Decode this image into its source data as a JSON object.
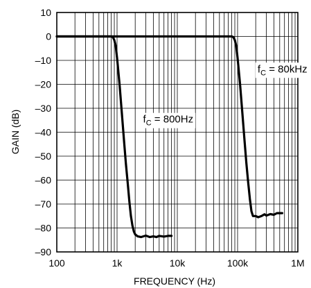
{
  "chart_data": {
    "type": "line",
    "xlabel": "FREQUENCY (Hz)",
    "ylabel": "GAIN (dB)",
    "x_scale": "log",
    "xlim": [
      100,
      1000000
    ],
    "ylim": [
      -90,
      10
    ],
    "grid": true,
    "x_ticks": [
      {
        "value": 100,
        "label": "100"
      },
      {
        "value": 1000,
        "label": "1k"
      },
      {
        "value": 10000,
        "label": "10k"
      },
      {
        "value": 100000,
        "label": "100k"
      },
      {
        "value": 1000000,
        "label": "1M"
      }
    ],
    "y_ticks": [
      {
        "value": 10,
        "label": "10"
      },
      {
        "value": 0,
        "label": "0"
      },
      {
        "value": -10,
        "label": "–10"
      },
      {
        "value": -20,
        "label": "–20"
      },
      {
        "value": -30,
        "label": "–30"
      },
      {
        "value": -40,
        "label": "–40"
      },
      {
        "value": -50,
        "label": "–50"
      },
      {
        "value": -60,
        "label": "–60"
      },
      {
        "value": -70,
        "label": "–70"
      },
      {
        "value": -80,
        "label": "–80"
      },
      {
        "value": -90,
        "label": "–90"
      }
    ],
    "series": [
      {
        "x": [
          100,
          500,
          800,
          850,
          900,
          950,
          1000,
          1100,
          1200,
          1300,
          1400,
          1500,
          1600,
          1700,
          1800,
          1900,
          2000,
          2200,
          2500,
          3000,
          3500,
          4000,
          4500,
          5000,
          6000,
          7000,
          8000
        ],
        "y": [
          0,
          0,
          0,
          -0.3,
          -1.5,
          -4,
          -9,
          -20,
          -32,
          -43,
          -53,
          -61,
          -69,
          -75,
          -79,
          -81.5,
          -82.7,
          -83.5,
          -83.8,
          -83.2,
          -83.8,
          -83.5,
          -83.8,
          -83.3,
          -83.6,
          -83.3,
          -83.3
        ]
      },
      {
        "x": [
          100,
          50000,
          80000,
          85000,
          90000,
          95000,
          100000,
          110000,
          120000,
          130000,
          140000,
          150000,
          160000,
          170000,
          180000,
          200000,
          220000,
          250000,
          280000,
          300000,
          350000,
          400000,
          450000,
          500000,
          550000
        ],
        "y": [
          0,
          0,
          0,
          -0.3,
          -1.5,
          -4,
          -9,
          -20,
          -32,
          -43,
          -53,
          -61,
          -68,
          -73,
          -75,
          -75,
          -75.5,
          -75,
          -74.3,
          -74.8,
          -74.2,
          -74.5,
          -73.8,
          -73.8,
          -73.8
        ]
      }
    ],
    "annotations": [
      {
        "sub": "C",
        "rest": " = 800Hz",
        "x": 2700,
        "y": -36
      },
      {
        "sub": "C",
        "rest": " = 80kHz",
        "x": 215000,
        "y": -15
      }
    ]
  }
}
